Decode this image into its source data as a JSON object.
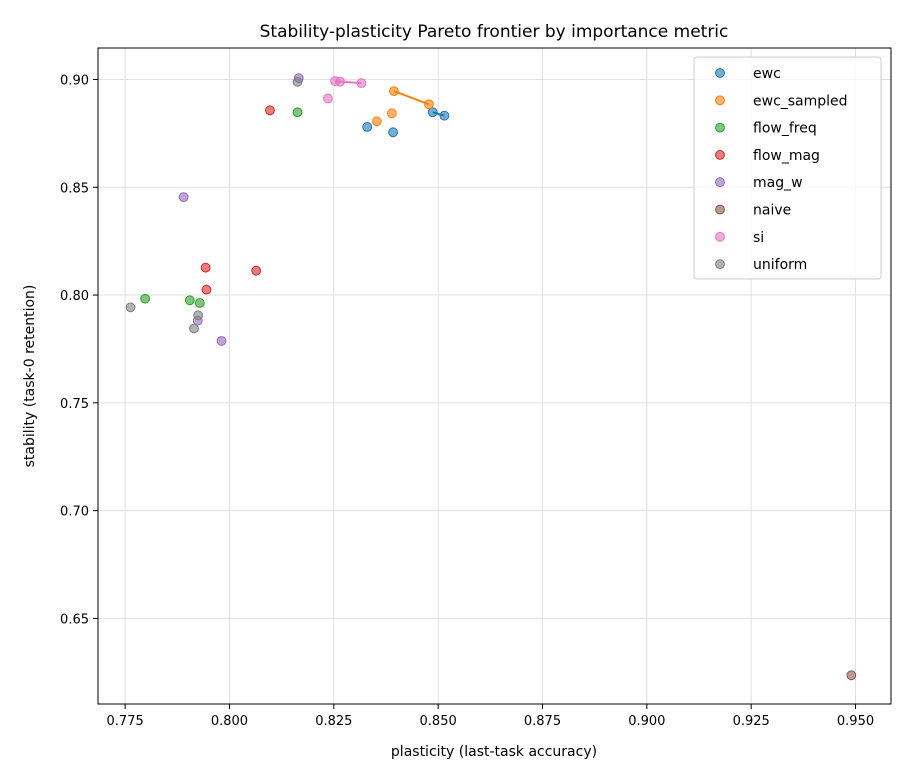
{
  "chart_data": {
    "type": "scatter",
    "title": "Stability-plasticity Pareto frontier by importance metric",
    "xlabel": "plasticity  (last-task accuracy)",
    "ylabel": "stability  (task-0 retention)",
    "xlim": [
      0.7685,
      0.9585
    ],
    "ylim": [
      0.6103,
      0.9146
    ],
    "xticks": [
      0.775,
      0.8,
      0.825,
      0.85,
      0.875,
      0.9,
      0.925,
      0.95
    ],
    "xtick_labels": [
      "0.775",
      "0.800",
      "0.825",
      "0.850",
      "0.875",
      "0.900",
      "0.925",
      "0.950"
    ],
    "yticks": [
      0.65,
      0.7,
      0.75,
      0.8,
      0.85,
      0.9
    ],
    "ytick_labels": [
      "0.65",
      "0.70",
      "0.75",
      "0.80",
      "0.85",
      "0.90"
    ],
    "grid": true,
    "legend_position": "top-right",
    "series": [
      {
        "name": "ewc",
        "color": "#1f77b4",
        "points": [
          [
            0.833,
            0.878
          ],
          [
            0.8392,
            0.8755
          ],
          [
            0.8487,
            0.8848
          ],
          [
            0.8515,
            0.8832
          ]
        ],
        "frontier": [
          [
            0.8487,
            0.8848
          ],
          [
            0.8515,
            0.8832
          ]
        ]
      },
      {
        "name": "ewc_sampled",
        "color": "#ff7f0e",
        "points": [
          [
            0.8353,
            0.8806
          ],
          [
            0.8389,
            0.8843
          ],
          [
            0.8394,
            0.8946
          ],
          [
            0.8478,
            0.8885
          ]
        ],
        "frontier": [
          [
            0.8394,
            0.8946
          ],
          [
            0.8478,
            0.8885
          ]
        ]
      },
      {
        "name": "flow_freq",
        "color": "#2ca02c",
        "points": [
          [
            0.7798,
            0.7983
          ],
          [
            0.7905,
            0.7976
          ],
          [
            0.7929,
            0.7963
          ],
          [
            0.8163,
            0.8848
          ]
        ],
        "frontier": []
      },
      {
        "name": "flow_mag",
        "color": "#d62728",
        "points": [
          [
            0.7943,
            0.8127
          ],
          [
            0.7945,
            0.8025
          ],
          [
            0.8064,
            0.8113
          ],
          [
            0.8097,
            0.8857
          ]
        ],
        "frontier": []
      },
      {
        "name": "mag_w",
        "color": "#9467bd",
        "points": [
          [
            0.789,
            0.8454
          ],
          [
            0.7924,
            0.7881
          ],
          [
            0.7981,
            0.7787
          ],
          [
            0.8166,
            0.9006
          ]
        ],
        "frontier": []
      },
      {
        "name": "naive",
        "color": "#8c564b",
        "points": [
          [
            0.949,
            0.6236
          ]
        ],
        "frontier": []
      },
      {
        "name": "si",
        "color": "#e377c2",
        "points": [
          [
            0.8236,
            0.8912
          ],
          [
            0.8253,
            0.8992
          ],
          [
            0.8265,
            0.899
          ],
          [
            0.8316,
            0.8983
          ]
        ],
        "frontier": [
          [
            0.8253,
            0.8992
          ],
          [
            0.8265,
            0.899
          ],
          [
            0.8316,
            0.8983
          ]
        ]
      },
      {
        "name": "uniform",
        "color": "#7f7f7f",
        "points": [
          [
            0.7763,
            0.7943
          ],
          [
            0.7915,
            0.7845
          ],
          [
            0.7925,
            0.7906
          ],
          [
            0.8163,
            0.8989
          ]
        ],
        "frontier": []
      }
    ]
  }
}
